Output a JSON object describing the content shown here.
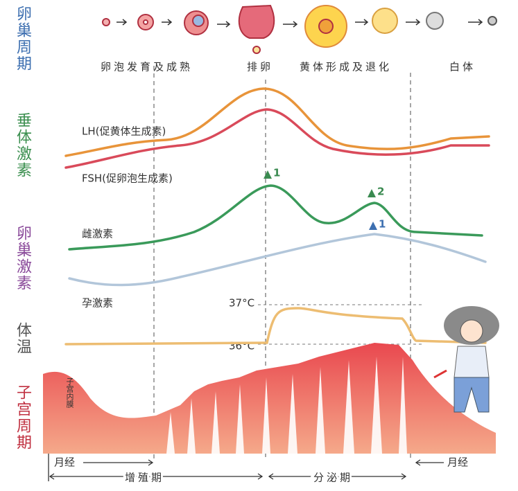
{
  "sections": [
    "卵巢周期",
    "垂体激素",
    "卵巢激素",
    "体温",
    "子宫周期"
  ],
  "phases": [
    "卵泡发育及成熟",
    "排卵",
    "黄体形成及退化",
    "白体"
  ],
  "hormones": {
    "lh": "LH(促黄体生成素)",
    "fsh": "FSH(促卵泡生成素)",
    "estrogen": "雌激素",
    "progesterone": "孕激素"
  },
  "peaks": [
    "1",
    "2",
    "1"
  ],
  "temperature": {
    "high": "37°C",
    "low": "36°C"
  },
  "uterus_label": "子宫内膜",
  "uterine_phases": [
    "月经",
    "增殖期",
    "分泌期",
    "月经"
  ]
}
